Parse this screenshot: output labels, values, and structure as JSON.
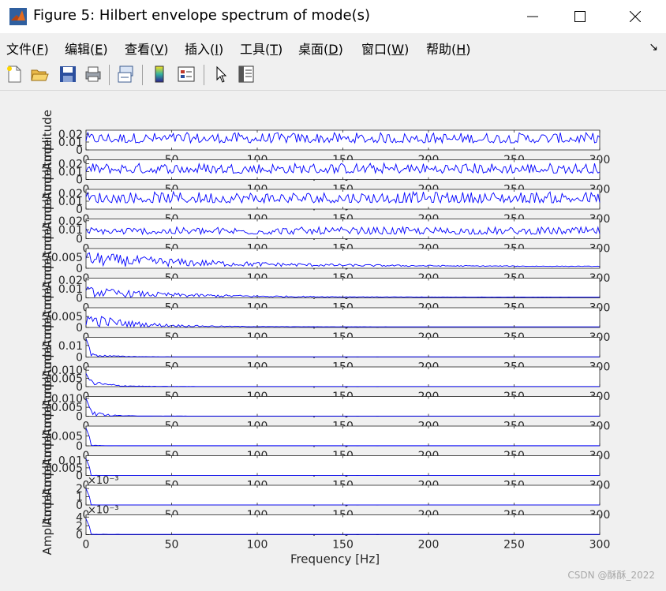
{
  "window": {
    "title": "Figure 5: Hilbert envelope spectrum of mode(s)",
    "minimize_icon": "minimize-icon",
    "maximize_icon": "maximize-icon",
    "close_icon": "close-icon"
  },
  "menu": [
    {
      "label": "文件(",
      "key": "F",
      "end": ")"
    },
    {
      "label": "编辑(",
      "key": "E",
      "end": ")"
    },
    {
      "label": "查看(",
      "key": "V",
      "end": ")"
    },
    {
      "label": "插入(",
      "key": "I",
      "end": ")"
    },
    {
      "label": "工具(",
      "key": "T",
      "end": ")"
    },
    {
      "label": "桌面(",
      "key": "D",
      "end": ")"
    },
    {
      "label": "窗口(",
      "key": "W",
      "end": ")"
    },
    {
      "label": "帮助(",
      "key": "H",
      "end": ")"
    }
  ],
  "toolbar": [
    "new-figure-icon",
    "open-file-icon",
    "save-icon",
    "print-icon",
    "link-plot-icon",
    "insert-colorbar-icon",
    "insert-legend-icon",
    "edit-plot-arrow-icon",
    "property-inspector-icon"
  ],
  "watermark": "CSDN @酥酥_2022",
  "chart_data": {
    "type": "line",
    "line_color": "#0000ff",
    "xlabel": "Frequency [Hz]",
    "ylabel": "Amplitude",
    "xlim": [
      0,
      300
    ],
    "xticks": [
      0,
      50,
      100,
      150,
      200,
      250,
      300
    ],
    "panels": [
      {
        "yticks": [
          "0",
          "0.01",
          "0.02"
        ],
        "ymax": 0.025,
        "base": 0.009,
        "noise": 0.013,
        "decay": 0,
        "peak": 0
      },
      {
        "yticks": [
          "0",
          "0.01",
          "0.02"
        ],
        "ymax": 0.025,
        "base": 0.008,
        "noise": 0.013,
        "decay": 0,
        "peak": 0
      },
      {
        "yticks": [
          "0",
          "0.01",
          "0.02"
        ],
        "ymax": 0.025,
        "base": 0.008,
        "noise": 0.014,
        "decay": 0,
        "peak": 0
      },
      {
        "yticks": [
          "0",
          "0.01",
          "0.02"
        ],
        "ymax": 0.022,
        "base": 0.005,
        "noise": 0.008,
        "decay": 0,
        "peak": 0
      },
      {
        "yticks": [
          "0",
          "0.005"
        ],
        "ymax": 0.009,
        "base": 0.0008,
        "noise": 0.007,
        "decay": 0.012,
        "peak": 0
      },
      {
        "yticks": [
          "0",
          "0.01",
          "0.02"
        ],
        "ymax": 0.022,
        "base": 0.0008,
        "noise": 0.012,
        "decay": 0.018,
        "peak": 0
      },
      {
        "yticks": [
          "0",
          "0.005"
        ],
        "ymax": 0.009,
        "base": 0.0003,
        "noise": 0.007,
        "decay": 0.035,
        "peak": 0
      },
      {
        "yticks": [
          "0",
          "0.01"
        ],
        "ymax": 0.017,
        "base": 0.0002,
        "noise": 0.004,
        "decay": 0.08,
        "peak": 0.016
      },
      {
        "yticks": [
          "0",
          "0.005",
          "0.010"
        ],
        "ymax": 0.012,
        "base": 0.0001,
        "noise": 0.006,
        "decay": 0.09,
        "peak": 0.008
      },
      {
        "yticks": [
          "0",
          "0.005",
          "0.010"
        ],
        "ymax": 0.011,
        "base": 0.0001,
        "noise": 0.005,
        "decay": 0.12,
        "peak": 0.01
      },
      {
        "yticks": [
          "0",
          "0.005"
        ],
        "ymax": 0.01,
        "base": 5e-05,
        "noise": 0.002,
        "decay": 0.3,
        "peak": 0.009
      },
      {
        "yticks": [
          "0",
          "0.005",
          "0.01"
        ],
        "ymax": 0.013,
        "base": 3e-05,
        "noise": 0.001,
        "decay": 0.5,
        "peak": 0.011
      },
      {
        "yticks": [
          "0",
          "1",
          "2"
        ],
        "ymax": 2.4,
        "base": 0.01,
        "noise": 0.05,
        "decay": 0.5,
        "peak": 2.0,
        "exponent": "×10⁻³"
      },
      {
        "yticks": [
          "0",
          "2",
          "4"
        ],
        "ymax": 4.5,
        "base": 0.05,
        "noise": 0.1,
        "decay": 0.08,
        "peak": 3.6,
        "exponent": "×10⁻³"
      }
    ]
  }
}
